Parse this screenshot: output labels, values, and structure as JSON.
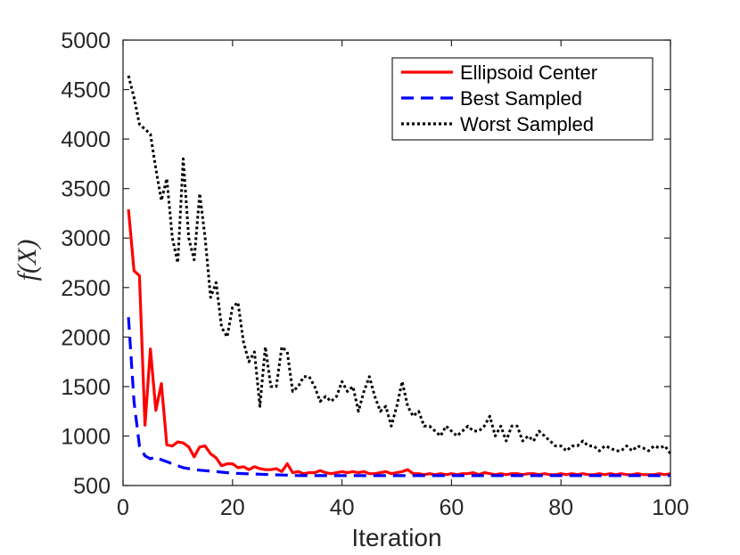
{
  "chart_data": {
    "type": "line",
    "title": "",
    "xlabel": "Iteration",
    "ylabel": "f(X)",
    "xlim": [
      0,
      100
    ],
    "ylim": [
      500,
      5000
    ],
    "xticks": [
      0,
      20,
      40,
      60,
      80,
      100
    ],
    "yticks": [
      500,
      1000,
      1500,
      2000,
      2500,
      3000,
      3500,
      4000,
      4500,
      5000
    ],
    "grid": false,
    "legend_position": "top-right",
    "series": [
      {
        "name": "Ellipsoid Center",
        "color": "#ff0000",
        "style": "solid",
        "x": [
          1,
          2,
          3,
          4,
          5,
          6,
          7,
          8,
          9,
          10,
          11,
          12,
          13,
          14,
          15,
          16,
          17,
          18,
          19,
          20,
          21,
          22,
          23,
          24,
          25,
          26,
          27,
          28,
          29,
          30,
          31,
          32,
          33,
          34,
          35,
          36,
          37,
          38,
          39,
          40,
          41,
          42,
          43,
          44,
          45,
          46,
          47,
          48,
          49,
          50,
          51,
          52,
          53,
          54,
          55,
          56,
          57,
          58,
          59,
          60,
          61,
          62,
          63,
          64,
          65,
          66,
          67,
          68,
          69,
          70,
          71,
          72,
          73,
          74,
          75,
          76,
          77,
          78,
          79,
          80,
          81,
          82,
          83,
          84,
          85,
          86,
          87,
          88,
          89,
          90,
          91,
          92,
          93,
          94,
          95,
          96,
          97,
          98,
          99,
          100
        ],
        "values": [
          3290,
          2670,
          2620,
          1110,
          1880,
          1260,
          1530,
          910,
          900,
          940,
          930,
          890,
          790,
          890,
          900,
          820,
          780,
          700,
          720,
          720,
          680,
          690,
          660,
          690,
          670,
          660,
          660,
          670,
          640,
          720,
          630,
          640,
          620,
          630,
          630,
          650,
          630,
          620,
          630,
          640,
          630,
          640,
          630,
          640,
          620,
          620,
          630,
          640,
          620,
          630,
          640,
          660,
          620,
          620,
          610,
          620,
          610,
          620,
          610,
          620,
          610,
          620,
          620,
          630,
          610,
          630,
          620,
          610,
          620,
          610,
          620,
          620,
          610,
          620,
          620,
          610,
          620,
          610,
          610,
          620,
          610,
          620,
          610,
          620,
          610,
          610,
          620,
          610,
          620,
          610,
          620,
          610,
          610,
          620,
          610,
          610,
          610,
          620,
          610,
          620
        ]
      },
      {
        "name": "Best Sampled",
        "color": "#0000ff",
        "style": "dashed",
        "x": [
          1,
          2,
          3,
          4,
          5,
          6,
          7,
          8,
          9,
          10,
          11,
          12,
          13,
          14,
          15,
          16,
          17,
          18,
          19,
          20,
          21,
          22,
          23,
          24,
          25,
          26,
          27,
          28,
          29,
          30,
          31,
          32,
          33,
          34,
          35,
          36,
          37,
          38,
          39,
          40,
          41,
          42,
          43,
          44,
          45,
          46,
          47,
          48,
          49,
          50,
          51,
          52,
          53,
          54,
          55,
          56,
          57,
          58,
          59,
          60,
          61,
          62,
          63,
          64,
          65,
          66,
          67,
          68,
          69,
          70,
          71,
          72,
          73,
          74,
          75,
          76,
          77,
          78,
          79,
          80,
          81,
          82,
          83,
          84,
          85,
          86,
          87,
          88,
          89,
          90,
          91,
          92,
          93,
          94,
          95,
          96,
          97,
          98,
          99,
          100
        ],
        "values": [
          2200,
          1350,
          900,
          800,
          770,
          790,
          760,
          740,
          720,
          700,
          680,
          670,
          660,
          655,
          650,
          645,
          640,
          635,
          630,
          625,
          622,
          620,
          618,
          616,
          614,
          612,
          610,
          608,
          606,
          604,
          602,
          601,
          600,
          600,
          600,
          600,
          600,
          600,
          600,
          600,
          600,
          600,
          600,
          600,
          600,
          600,
          600,
          600,
          600,
          600,
          600,
          600,
          600,
          600,
          600,
          600,
          600,
          600,
          600,
          600,
          600,
          600,
          600,
          600,
          600,
          600,
          600,
          600,
          600,
          600,
          600,
          600,
          600,
          600,
          600,
          600,
          600,
          600,
          600,
          600,
          600,
          600,
          600,
          600,
          600,
          600,
          600,
          600,
          600,
          600,
          600,
          600,
          600,
          600,
          600,
          600,
          600,
          600,
          600,
          600
        ]
      },
      {
        "name": "Worst Sampled",
        "color": "#000000",
        "style": "dotted",
        "x": [
          1,
          2,
          3,
          4,
          5,
          6,
          7,
          8,
          9,
          10,
          11,
          12,
          13,
          14,
          15,
          16,
          17,
          18,
          19,
          20,
          21,
          22,
          23,
          24,
          25,
          26,
          27,
          28,
          29,
          30,
          31,
          32,
          33,
          34,
          35,
          36,
          37,
          38,
          39,
          40,
          41,
          42,
          43,
          44,
          45,
          46,
          47,
          48,
          49,
          50,
          51,
          52,
          53,
          54,
          55,
          56,
          57,
          58,
          59,
          60,
          61,
          62,
          63,
          64,
          65,
          66,
          67,
          68,
          69,
          70,
          71,
          72,
          73,
          74,
          75,
          76,
          77,
          78,
          79,
          80,
          81,
          82,
          83,
          84,
          85,
          86,
          87,
          88,
          89,
          90,
          91,
          92,
          93,
          94,
          95,
          96,
          97,
          98,
          99,
          100
        ],
        "values": [
          4640,
          4420,
          4150,
          4100,
          4050,
          3700,
          3380,
          3600,
          3000,
          2750,
          3800,
          3000,
          2780,
          3450,
          3000,
          2400,
          2550,
          2100,
          2000,
          2300,
          2350,
          1950,
          1750,
          1850,
          1300,
          1900,
          1500,
          1500,
          1900,
          1850,
          1450,
          1500,
          1600,
          1600,
          1500,
          1350,
          1400,
          1350,
          1400,
          1550,
          1450,
          1500,
          1250,
          1450,
          1600,
          1400,
          1250,
          1300,
          1100,
          1300,
          1550,
          1300,
          1200,
          1250,
          1100,
          1100,
          1050,
          1000,
          1100,
          1050,
          1000,
          1050,
          1100,
          1050,
          1050,
          1100,
          1200,
          1000,
          1100,
          950,
          1100,
          1100,
          950,
          1000,
          950,
          1050,
          1000,
          950,
          900,
          900,
          850,
          900,
          900,
          950,
          900,
          900,
          850,
          900,
          880,
          850,
          850,
          900,
          850,
          900,
          880,
          850,
          900,
          880,
          900,
          820
        ]
      }
    ]
  }
}
